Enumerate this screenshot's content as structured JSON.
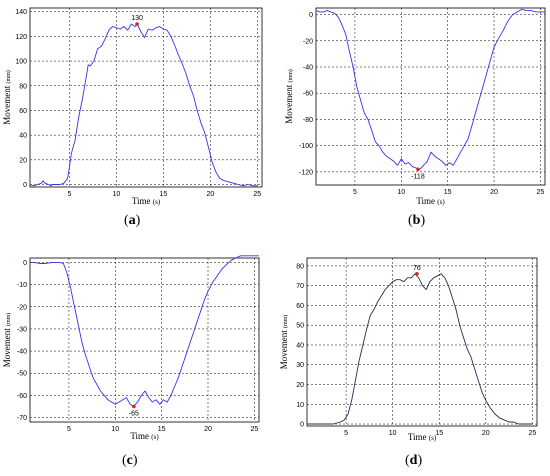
{
  "chart_data": [
    {
      "type": "line",
      "caption": "(a)",
      "ylabel": "Movement",
      "ylabel_unit": "(mm)",
      "xlabel": "Time",
      "xlabel_unit": "(s)",
      "xlim": [
        0.8,
        25.5
      ],
      "ylim": [
        -2,
        143
      ],
      "xticks": [
        5,
        10,
        15,
        20,
        25
      ],
      "yticks": [
        0,
        20,
        40,
        60,
        80,
        100,
        120,
        140
      ],
      "grid": true,
      "line_color": "#3333ee",
      "peak": {
        "x": 12.2,
        "y": 130,
        "label": "130"
      },
      "series": [
        {
          "x": [
            0.8,
            1.2,
            1.6,
            2,
            2.2,
            2.4,
            2.8,
            3,
            3.2,
            3.6,
            4,
            4.4,
            4.8,
            5,
            5.2,
            5.6,
            6,
            6.4,
            6.8,
            7,
            7.2,
            7.6,
            8,
            8.4,
            8.8,
            9.2,
            9.6,
            10,
            10.4,
            10.8,
            11.2,
            11.6,
            12,
            12.2,
            12.6,
            13,
            13.4,
            13.8,
            14.2,
            14.6,
            15,
            15.4,
            15.8,
            16.2,
            16.6,
            17,
            17.4,
            17.8,
            18.2,
            18.6,
            19,
            19.4,
            19.8,
            20.2,
            20.6,
            21,
            21.5,
            22,
            22.5,
            23,
            23.5,
            24,
            24.5,
            25
          ],
          "y": [
            0,
            -1,
            0,
            1,
            3,
            1,
            0,
            -1,
            0,
            0,
            0,
            1,
            5,
            14,
            25,
            36,
            55,
            70,
            88,
            97,
            96,
            100,
            110,
            112,
            118,
            125,
            128,
            127,
            126,
            128,
            125,
            130,
            128,
            130,
            124,
            119,
            126,
            125,
            127,
            128,
            126,
            125,
            120,
            113,
            105,
            98,
            90,
            80,
            72,
            60,
            50,
            42,
            30,
            18,
            10,
            5,
            3,
            2,
            1,
            0,
            -1,
            0,
            -1,
            -1
          ]
        }
      ]
    },
    {
      "type": "line",
      "caption": "(b)",
      "ylabel": "Movement",
      "ylabel_unit": "(mm)",
      "xlabel": "Time",
      "xlabel_unit": "(s)",
      "xlim": [
        0.8,
        25.5
      ],
      "ylim": [
        -130,
        5
      ],
      "xticks": [
        5,
        10,
        15,
        20,
        25
      ],
      "yticks": [
        0,
        -20,
        -40,
        -60,
        -80,
        -100,
        -120
      ],
      "grid": true,
      "line_color": "#3333ee",
      "peak": {
        "x": 11.8,
        "y": -118,
        "label": "-118"
      },
      "series": [
        {
          "x": [
            0.8,
            1.2,
            1.6,
            2,
            2.4,
            2.8,
            3.2,
            3.6,
            4,
            4.4,
            4.8,
            5.2,
            5.6,
            6,
            6.4,
            6.8,
            7.2,
            7.6,
            8,
            8.4,
            8.8,
            9.2,
            9.6,
            10,
            10.4,
            10.8,
            11.2,
            11.6,
            12,
            12.4,
            12.8,
            13.2,
            13.6,
            14,
            14.4,
            14.8,
            15.2,
            15.6,
            16,
            16.4,
            16.8,
            17.2,
            17.6,
            18,
            18.4,
            18.8,
            19.2,
            19.6,
            20,
            20.5,
            21,
            21.5,
            22,
            22.5,
            23,
            23.5,
            24,
            24.5,
            25,
            25.5
          ],
          "y": [
            3,
            2,
            2,
            3,
            2,
            1,
            -2,
            -8,
            -15,
            -28,
            -40,
            -55,
            -65,
            -75,
            -80,
            -88,
            -97,
            -100,
            -105,
            -108,
            -110,
            -112,
            -115,
            -110,
            -114,
            -113,
            -116,
            -117,
            -118,
            -115,
            -112,
            -105,
            -108,
            -110,
            -112,
            -115,
            -113,
            -115,
            -110,
            -105,
            -100,
            -95,
            -85,
            -75,
            -65,
            -55,
            -45,
            -35,
            -25,
            -18,
            -12,
            -5,
            0,
            2,
            4,
            3,
            3,
            2,
            2,
            2
          ]
        }
      ]
    },
    {
      "type": "line",
      "caption": "(c)",
      "ylabel": "Movement",
      "ylabel_unit": "(mm)",
      "xlabel": "Time",
      "xlabel_unit": "(s)",
      "xlim": [
        0.8,
        25.5
      ],
      "ylim": [
        -72,
        2
      ],
      "xticks": [
        5,
        10,
        15,
        20,
        25
      ],
      "yticks": [
        0,
        -10,
        -20,
        -30,
        -40,
        -50,
        -60,
        -70
      ],
      "grid": true,
      "line_color": "#3333ee",
      "peak": {
        "x": 12.0,
        "y": -65,
        "label": "-65"
      },
      "series": [
        {
          "x": [
            0.8,
            1.2,
            1.6,
            2,
            2.4,
            2.8,
            3.2,
            3.6,
            4,
            4.4,
            4.8,
            5.2,
            5.6,
            6,
            6.4,
            6.8,
            7.2,
            7.6,
            8,
            8.4,
            8.8,
            9.2,
            9.6,
            10,
            10.4,
            10.8,
            11.2,
            11.6,
            12,
            12.4,
            12.8,
            13.2,
            13.6,
            14,
            14.4,
            14.8,
            15.2,
            15.6,
            16,
            16.4,
            16.8,
            17.2,
            17.6,
            18,
            18.4,
            18.8,
            19.2,
            19.6,
            20,
            20.5,
            21,
            21.5,
            22,
            22.5,
            23,
            23.5,
            24,
            24.5,
            25,
            25.5
          ],
          "y": [
            0,
            0,
            -0.3,
            -0.5,
            -0.5,
            -0.3,
            0,
            0,
            0,
            -0.5,
            -5,
            -12,
            -20,
            -28,
            -36,
            -42,
            -47,
            -52,
            -55,
            -58,
            -60,
            -62,
            -63,
            -64,
            -63,
            -62,
            -61,
            -64,
            -65,
            -63,
            -60,
            -58,
            -61,
            -63,
            -62,
            -64,
            -62,
            -63,
            -60,
            -56,
            -52,
            -47,
            -42,
            -37,
            -32,
            -27,
            -22,
            -17,
            -13,
            -9,
            -6,
            -3,
            -1,
            1,
            2,
            3,
            3,
            3,
            3,
            3
          ]
        }
      ]
    },
    {
      "type": "line",
      "caption": "(d)",
      "ylabel": "Movement",
      "ylabel_unit": "(mm)",
      "xlabel": "Time",
      "xlabel_unit": "(s)",
      "xlim": [
        0.8,
        25.5
      ],
      "ylim": [
        -1,
        84
      ],
      "xticks": [
        5,
        10,
        15,
        20,
        25
      ],
      "yticks": [
        0,
        10,
        20,
        30,
        40,
        50,
        60,
        70,
        80
      ],
      "grid": true,
      "line_color": "#2a2a55",
      "peak": {
        "x": 12.6,
        "y": 76,
        "label": "76"
      },
      "series": [
        {
          "x": [
            0.8,
            1.2,
            1.6,
            2,
            2.4,
            2.8,
            3.2,
            3.6,
            4,
            4.4,
            4.8,
            5.2,
            5.6,
            6,
            6.4,
            6.8,
            7.2,
            7.6,
            8,
            8.4,
            8.8,
            9.2,
            9.6,
            10,
            10.4,
            10.8,
            11.2,
            11.6,
            12,
            12.4,
            12.8,
            13.2,
            13.6,
            14,
            14.4,
            14.8,
            15.2,
            15.6,
            16,
            16.4,
            16.8,
            17.2,
            17.6,
            18,
            18.4,
            18.8,
            19.2,
            19.6,
            20,
            20.5,
            21,
            21.5,
            22,
            22.5,
            23,
            23.5,
            24,
            24.5,
            25
          ],
          "y": [
            0,
            0,
            0,
            0,
            0,
            0,
            0,
            0,
            0.5,
            1,
            2,
            5,
            12,
            22,
            32,
            40,
            48,
            55,
            58,
            62,
            65,
            68,
            70,
            72,
            73,
            73,
            72,
            74,
            74,
            76,
            74,
            70,
            68,
            72,
            74,
            75,
            76,
            74,
            70,
            64,
            58,
            50,
            44,
            38,
            34,
            28,
            22,
            16,
            12,
            8,
            5,
            3,
            2,
            1,
            1,
            0,
            0,
            0,
            0
          ]
        }
      ]
    }
  ]
}
